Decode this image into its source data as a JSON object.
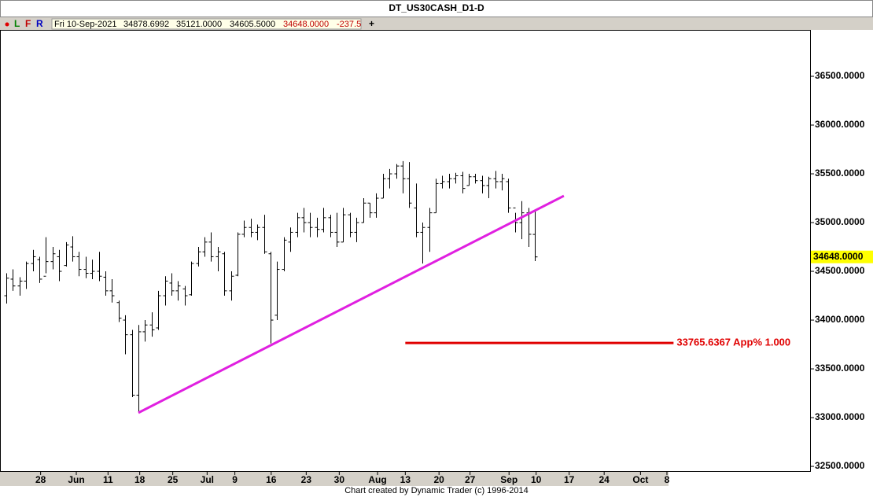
{
  "chart_data": {
    "type": "ohlc",
    "title": "DT_US30CASH_D1-D",
    "toolbar": {
      "buttons": [
        "L",
        "F",
        "R"
      ],
      "fields": [
        "Fri 10-Sep-2021",
        "34878.6992",
        "35121.0000",
        "34605.5000",
        "34648.0000",
        "-237.5"
      ],
      "plus": "+"
    },
    "footer": "Chart created by Dynamic Trader  (c) 1996-2014",
    "xlim": [
      -0.95,
      121.67
    ],
    "ylim": [
      32444,
      36976
    ],
    "xticks": [
      {
        "value": 5.2,
        "label": "28"
      },
      {
        "value": 10.6,
        "label": "Jun"
      },
      {
        "value": 15.4,
        "label": "11"
      },
      {
        "value": 20.2,
        "label": "18"
      },
      {
        "value": 25.2,
        "label": "25"
      },
      {
        "value": 30.4,
        "label": "Jul"
      },
      {
        "value": 34.6,
        "label": "9"
      },
      {
        "value": 40.1,
        "label": "16"
      },
      {
        "value": 45.4,
        "label": "23"
      },
      {
        "value": 50.4,
        "label": "30"
      },
      {
        "value": 56.2,
        "label": "Aug"
      },
      {
        "value": 60.4,
        "label": "13"
      },
      {
        "value": 65.5,
        "label": "20"
      },
      {
        "value": 70.2,
        "label": "27"
      },
      {
        "value": 76.1,
        "label": "Sep"
      },
      {
        "value": 80.2,
        "label": "10"
      },
      {
        "value": 85.2,
        "label": "17"
      },
      {
        "value": 90.5,
        "label": "24"
      },
      {
        "value": 96,
        "label": "Oct"
      },
      {
        "value": 100,
        "label": "8"
      }
    ],
    "yticks": [
      {
        "value": 32500,
        "label": "32500.0000"
      },
      {
        "value": 33000,
        "label": "33000.0000"
      },
      {
        "value": 33500,
        "label": "33500.0000"
      },
      {
        "value": 34000,
        "label": "34000.0000"
      },
      {
        "value": 34500,
        "label": "34500.0000"
      },
      {
        "value": 35000,
        "label": "35000.0000"
      },
      {
        "value": 35500,
        "label": "35500.0000"
      },
      {
        "value": 36000,
        "label": "36000.0000"
      },
      {
        "value": 36500,
        "label": "36500.0000"
      }
    ],
    "color": "#000000",
    "ohlc": {
      "open": [
        34250,
        34420,
        34350,
        34400,
        34580,
        34620,
        34450,
        34600,
        34650,
        34560,
        34750,
        34650,
        34520,
        34480,
        34500,
        34440,
        34300,
        34180,
        34000,
        33850,
        33230,
        33880,
        33950,
        33920,
        34250,
        34380,
        34300,
        34320,
        34260,
        34580,
        34700,
        34800,
        34650,
        34680,
        34300,
        34460,
        34880,
        34950,
        34900,
        34950,
        34680,
        34050,
        34520,
        34800,
        34900,
        35050,
        35000,
        34950,
        34930,
        35050,
        34900,
        34800,
        35080,
        34900,
        35000,
        35200,
        35100,
        35250,
        35450,
        35500,
        35580,
        35450,
        35150,
        34900,
        34950,
        35100,
        35400,
        35420,
        35450,
        35480,
        35380,
        35470,
        35430,
        35380,
        35450,
        35420,
        35420,
        35150,
        35000,
        35100,
        34878.6992
      ],
      "high": [
        34480,
        34520,
        34440,
        34600,
        34720,
        34650,
        34850,
        34750,
        34720,
        34800,
        34860,
        34700,
        34650,
        34620,
        34700,
        34500,
        34420,
        34200,
        34050,
        33900,
        33950,
        34000,
        34080,
        34300,
        34450,
        34480,
        34400,
        34350,
        34600,
        34750,
        34850,
        34900,
        34750,
        34700,
        34500,
        34900,
        35020,
        35040,
        34980,
        35080,
        34700,
        34600,
        34850,
        34950,
        35100,
        35150,
        35100,
        35050,
        35150,
        35080,
        35100,
        35150,
        35100,
        35050,
        35250,
        35200,
        35300,
        35500,
        35550,
        35600,
        35630,
        35620,
        35400,
        35000,
        35150,
        35450,
        35480,
        35500,
        35510,
        35520,
        35500,
        35500,
        35480,
        35470,
        35530,
        35500,
        35450,
        35100,
        35220,
        35150,
        35121
      ],
      "low": [
        34170,
        34300,
        34250,
        34320,
        34500,
        34380,
        34480,
        34520,
        34400,
        34550,
        34600,
        34450,
        34430,
        34420,
        34400,
        34250,
        34180,
        33980,
        33650,
        33210,
        33050,
        33780,
        33830,
        33900,
        34150,
        34250,
        34200,
        34150,
        34250,
        34550,
        34650,
        34600,
        34500,
        34250,
        34200,
        34450,
        34850,
        34850,
        34820,
        34680,
        33760,
        34000,
        34500,
        34700,
        34850,
        34900,
        34850,
        34850,
        34900,
        34850,
        34750,
        34800,
        34850,
        34800,
        35000,
        35050,
        35050,
        35250,
        35350,
        35450,
        35300,
        35150,
        34850,
        34580,
        34700,
        35100,
        35350,
        35350,
        35400,
        35300,
        35380,
        35400,
        35300,
        35250,
        35350,
        35330,
        35100,
        34900,
        34830,
        34750,
        34605.5
      ],
      "close": [
        34430,
        34350,
        34400,
        34580,
        34650,
        34420,
        34600,
        34680,
        34500,
        34770,
        34650,
        34520,
        34480,
        34500,
        34450,
        34300,
        34250,
        34020,
        33850,
        33230,
        33880,
        33950,
        33900,
        34250,
        34400,
        34300,
        34350,
        34250,
        34580,
        34700,
        34800,
        34650,
        34700,
        34300,
        34450,
        34880,
        34950,
        34900,
        34950,
        34700,
        34000,
        34520,
        34820,
        34900,
        35050,
        35000,
        34950,
        34930,
        35050,
        34900,
        34800,
        35080,
        34900,
        35000,
        35200,
        35100,
        35250,
        35450,
        35500,
        35580,
        35450,
        35200,
        34900,
        34950,
        35100,
        35400,
        35420,
        35450,
        35480,
        35350,
        35470,
        35430,
        35380,
        35450,
        35420,
        35450,
        35150,
        35000,
        35100,
        34880,
        34648
      ]
    },
    "trendline": {
      "x": [
        20,
        84.4
      ],
      "y": [
        33050,
        35274
      ],
      "color": "#e020e0"
    },
    "level": {
      "x": [
        60.4,
        101
      ],
      "value": 33765.6367,
      "label": "33765.6367 App% 1.000",
      "color": "#e00000"
    },
    "current_price": {
      "value": 34648,
      "label": "34648.0000",
      "color": "#ffff00"
    }
  }
}
